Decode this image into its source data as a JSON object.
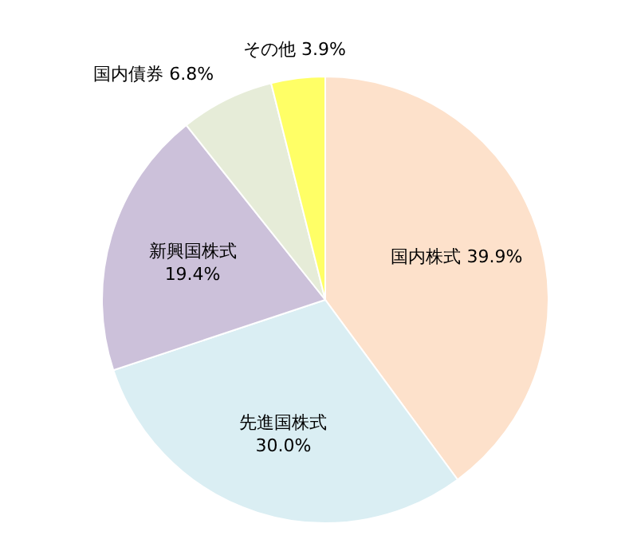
{
  "chart_data": {
    "type": "pie",
    "categories": [
      "国内株式",
      "先進国株式",
      "新興国株式",
      "国内債券",
      "その他"
    ],
    "values": [
      39.9,
      30.0,
      19.4,
      6.8,
      3.9
    ],
    "value_labels": [
      "39.9%",
      "30.0%",
      "19.4%",
      "6.8%",
      "3.9%"
    ],
    "colors": [
      "#fde1cb",
      "#daeef3",
      "#ccc1da",
      "#e6ecd8",
      "#ffff66"
    ]
  }
}
